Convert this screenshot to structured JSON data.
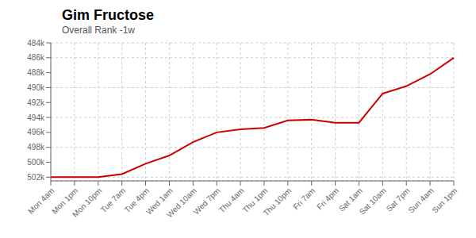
{
  "chart_data": {
    "type": "line",
    "title": "Gim Fructose",
    "subtitle": "Overall Rank -1w",
    "categories": [
      "Mon 4am",
      "Mon 1pm",
      "Mon 10pm",
      "Tue 7am",
      "Tue 4pm",
      "Wed 1am",
      "Wed 10am",
      "Wed 7pm",
      "Thu 4am",
      "Thu 1pm",
      "Thu 10pm",
      "Fri 7am",
      "Fri 4pm",
      "Sat 1am",
      "Sat 10am",
      "Sat 7pm",
      "Sun 4am",
      "Sun 1pm"
    ],
    "values": [
      502000,
      502000,
      502000,
      501600,
      500200,
      499100,
      497300,
      496000,
      495600,
      495400,
      494400,
      494300,
      494700,
      494700,
      490800,
      489800,
      488200,
      486000
    ],
    "color": "#cc0000",
    "ylim": [
      502500,
      484000
    ],
    "yticks": [
      {
        "value": 484000,
        "label": "484k"
      },
      {
        "value": 486000,
        "label": "486k"
      },
      {
        "value": 488000,
        "label": "488k"
      },
      {
        "value": 490000,
        "label": "490k"
      },
      {
        "value": 492000,
        "label": "492k"
      },
      {
        "value": 494000,
        "label": "494k"
      },
      {
        "value": 496000,
        "label": "496k"
      },
      {
        "value": 498000,
        "label": "498k"
      },
      {
        "value": 500000,
        "label": "500k"
      },
      {
        "value": 502000,
        "label": "502k"
      }
    ],
    "grid": true
  }
}
